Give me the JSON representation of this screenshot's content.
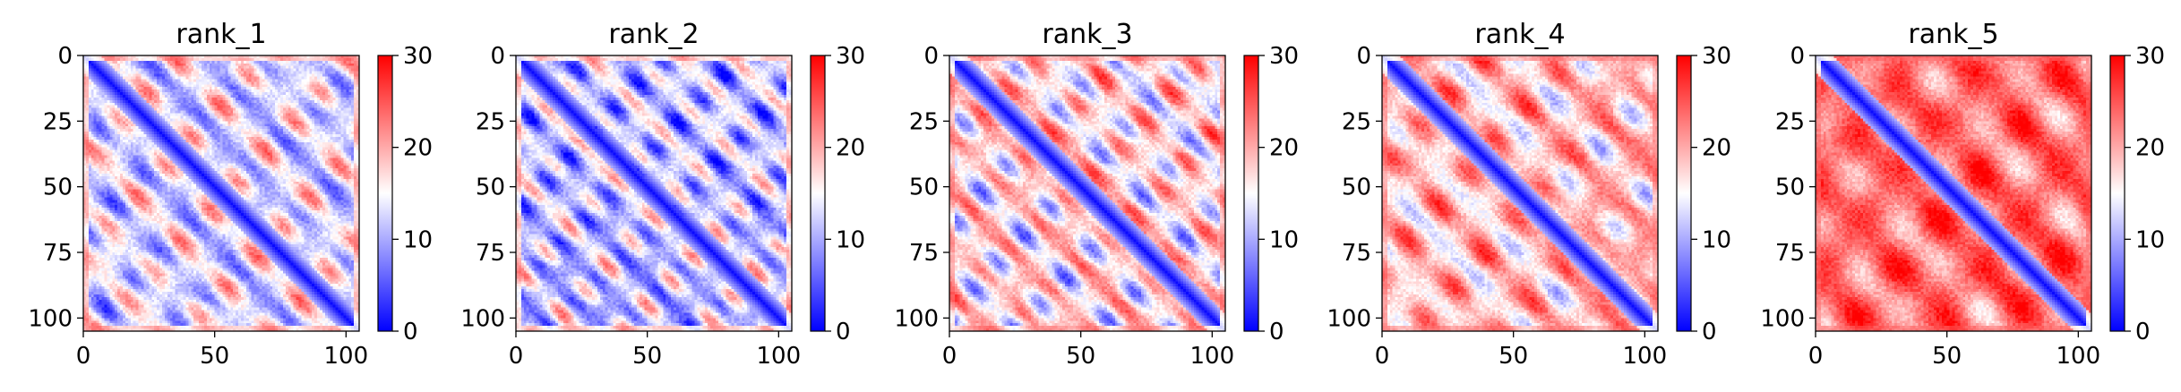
{
  "chart_data": [
    {
      "type": "heatmap",
      "title": "rank_1",
      "x_ticks": [
        0,
        50,
        100
      ],
      "y_ticks": [
        0,
        25,
        50,
        75,
        100
      ],
      "xlim": [
        0,
        105
      ],
      "ylim": [
        105,
        0
      ],
      "colorbar": {
        "ticks": [
          0,
          10,
          20,
          30
        ],
        "range": [
          0,
          30
        ],
        "colormap": "bwr",
        "colors": [
          "#0000ff",
          "#ffffff",
          "#ff0000"
        ]
      },
      "pattern": {
        "diag_period": 22,
        "band_contrast": 0.55,
        "base_level": 0.45
      }
    },
    {
      "type": "heatmap",
      "title": "rank_2",
      "x_ticks": [
        0,
        50,
        100
      ],
      "y_ticks": [
        0,
        25,
        50,
        75,
        100
      ],
      "xlim": [
        0,
        105
      ],
      "ylim": [
        105,
        0
      ],
      "colorbar": {
        "ticks": [
          0,
          10,
          20,
          30
        ],
        "range": [
          0,
          30
        ],
        "colormap": "bwr",
        "colors": [
          "#0000ff",
          "#ffffff",
          "#ff0000"
        ]
      },
      "pattern": {
        "diag_period": 18,
        "band_contrast": 0.6,
        "base_level": 0.38
      }
    },
    {
      "type": "heatmap",
      "title": "rank_3",
      "x_ticks": [
        0,
        50,
        100
      ],
      "y_ticks": [
        0,
        25,
        50,
        75,
        100
      ],
      "xlim": [
        0,
        105
      ],
      "ylim": [
        105,
        0
      ],
      "colorbar": {
        "ticks": [
          0,
          10,
          20,
          30
        ],
        "range": [
          0,
          30
        ],
        "colormap": "bwr",
        "colors": [
          "#0000ff",
          "#ffffff",
          "#ff0000"
        ]
      },
      "pattern": {
        "diag_period": 20,
        "band_contrast": 0.6,
        "base_level": 0.55
      }
    },
    {
      "type": "heatmap",
      "title": "rank_4",
      "x_ticks": [
        0,
        50,
        100
      ],
      "y_ticks": [
        0,
        25,
        50,
        75,
        100
      ],
      "xlim": [
        0,
        105
      ],
      "ylim": [
        105,
        0
      ],
      "colorbar": {
        "ticks": [
          0,
          10,
          20,
          30
        ],
        "range": [
          0,
          30
        ],
        "colormap": "bwr",
        "colors": [
          "#0000ff",
          "#ffffff",
          "#ff0000"
        ]
      },
      "pattern": {
        "diag_period": 24,
        "band_contrast": 0.45,
        "base_level": 0.62
      }
    },
    {
      "type": "heatmap",
      "title": "rank_5",
      "x_ticks": [
        0,
        50,
        100
      ],
      "y_ticks": [
        0,
        25,
        50,
        75,
        100
      ],
      "xlim": [
        0,
        105
      ],
      "ylim": [
        105,
        0
      ],
      "colorbar": {
        "ticks": [
          0,
          10,
          20,
          30
        ],
        "range": [
          0,
          30
        ],
        "colormap": "bwr",
        "colors": [
          "#0000ff",
          "#ffffff",
          "#ff0000"
        ]
      },
      "pattern": {
        "diag_period": 34,
        "band_contrast": 0.3,
        "base_level": 0.78
      }
    }
  ]
}
